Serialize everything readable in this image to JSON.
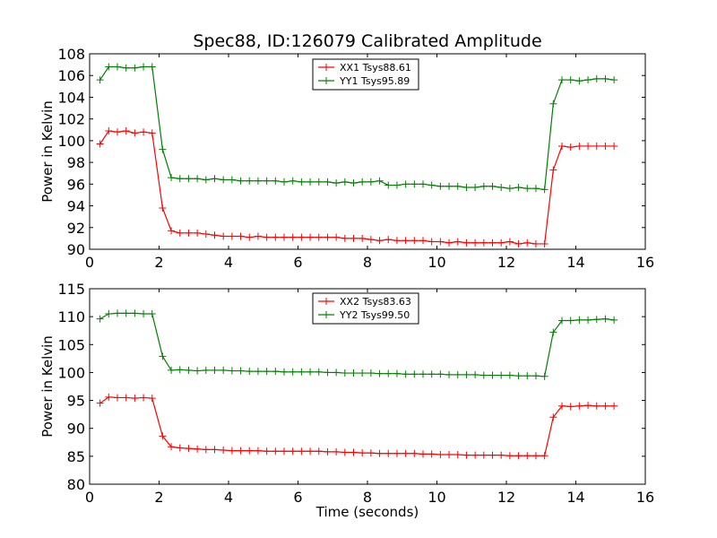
{
  "chart_data": [
    {
      "type": "line",
      "title": "Spec88, ID:126079 Calibrated Amplitude",
      "xlabel": "",
      "ylabel": "Power in Kelvin",
      "xlim": [
        0,
        16
      ],
      "ylim": [
        90,
        108
      ],
      "x_ticks": [
        "0",
        "2",
        "4",
        "6",
        "8",
        "10",
        "12",
        "14",
        "16"
      ],
      "y_ticks": [
        "90",
        "92",
        "94",
        "96",
        "98",
        "100",
        "102",
        "104",
        "106",
        "108"
      ],
      "grid": false,
      "legend_position": "top-center",
      "x": [
        0.3,
        0.55,
        0.8,
        1.05,
        1.3,
        1.55,
        1.8,
        2.1,
        2.35,
        2.6,
        2.85,
        3.1,
        3.35,
        3.6,
        3.85,
        4.1,
        4.35,
        4.6,
        4.85,
        5.1,
        5.35,
        5.6,
        5.85,
        6.1,
        6.35,
        6.6,
        6.85,
        7.1,
        7.35,
        7.6,
        7.85,
        8.1,
        8.35,
        8.6,
        8.85,
        9.1,
        9.35,
        9.6,
        9.85,
        10.1,
        10.35,
        10.6,
        10.85,
        11.1,
        11.35,
        11.6,
        11.85,
        12.1,
        12.35,
        12.6,
        12.85,
        13.1,
        13.35,
        13.6,
        13.85,
        14.1,
        14.35,
        14.6,
        14.85,
        15.1
      ],
      "series": [
        {
          "name": "XX1 Tsys88.61",
          "color": "#ff0000",
          "values": [
            99.7,
            100.9,
            100.8,
            100.9,
            100.7,
            100.8,
            100.7,
            93.8,
            91.7,
            91.5,
            91.5,
            91.5,
            91.4,
            91.3,
            91.2,
            91.2,
            91.2,
            91.1,
            91.2,
            91.1,
            91.1,
            91.1,
            91.1,
            91.1,
            91.1,
            91.1,
            91.1,
            91.1,
            91.0,
            91.0,
            91.0,
            90.9,
            90.8,
            90.9,
            90.8,
            90.8,
            90.8,
            90.8,
            90.7,
            90.7,
            90.6,
            90.7,
            90.6,
            90.6,
            90.6,
            90.6,
            90.6,
            90.7,
            90.5,
            90.6,
            90.5,
            90.5,
            97.3,
            99.5,
            99.4,
            99.5,
            99.5,
            99.5,
            99.5,
            99.5
          ]
        },
        {
          "name": "YY1 Tsys95.89",
          "color": "#008000",
          "values": [
            105.6,
            106.8,
            106.8,
            106.7,
            106.7,
            106.8,
            106.8,
            99.2,
            96.6,
            96.5,
            96.5,
            96.5,
            96.4,
            96.5,
            96.4,
            96.4,
            96.3,
            96.3,
            96.3,
            96.3,
            96.3,
            96.2,
            96.3,
            96.2,
            96.2,
            96.2,
            96.2,
            96.1,
            96.2,
            96.1,
            96.2,
            96.2,
            96.3,
            95.9,
            95.9,
            96.0,
            96.0,
            96.0,
            95.9,
            95.8,
            95.8,
            95.8,
            95.7,
            95.7,
            95.8,
            95.8,
            95.7,
            95.6,
            95.7,
            95.6,
            95.6,
            95.5,
            103.4,
            105.6,
            105.6,
            105.5,
            105.6,
            105.7,
            105.7,
            105.6
          ]
        }
      ]
    },
    {
      "type": "line",
      "title": "",
      "xlabel": "Time (seconds)",
      "ylabel": "Power in Kelvin",
      "xlim": [
        0,
        16
      ],
      "ylim": [
        80,
        115
      ],
      "x_ticks": [
        "0",
        "2",
        "4",
        "6",
        "8",
        "10",
        "12",
        "14",
        "16"
      ],
      "y_ticks": [
        "80",
        "85",
        "90",
        "95",
        "100",
        "105",
        "110",
        "115"
      ],
      "grid": false,
      "legend_position": "top-center",
      "x": [
        0.3,
        0.55,
        0.8,
        1.05,
        1.3,
        1.55,
        1.8,
        2.1,
        2.35,
        2.6,
        2.85,
        3.1,
        3.35,
        3.6,
        3.85,
        4.1,
        4.35,
        4.6,
        4.85,
        5.1,
        5.35,
        5.6,
        5.85,
        6.1,
        6.35,
        6.6,
        6.85,
        7.1,
        7.35,
        7.6,
        7.85,
        8.1,
        8.35,
        8.6,
        8.85,
        9.1,
        9.35,
        9.6,
        9.85,
        10.1,
        10.35,
        10.6,
        10.85,
        11.1,
        11.35,
        11.6,
        11.85,
        12.1,
        12.35,
        12.6,
        12.85,
        13.1,
        13.35,
        13.6,
        13.85,
        14.1,
        14.35,
        14.6,
        14.85,
        15.1
      ],
      "series": [
        {
          "name": "XX2 Tsys83.63",
          "color": "#ff0000",
          "values": [
            94.5,
            95.6,
            95.5,
            95.5,
            95.4,
            95.5,
            95.4,
            88.6,
            86.7,
            86.5,
            86.4,
            86.3,
            86.2,
            86.2,
            86.1,
            86.0,
            86.0,
            86.0,
            86.0,
            85.9,
            85.9,
            85.9,
            85.9,
            85.9,
            85.9,
            85.9,
            85.8,
            85.8,
            85.7,
            85.7,
            85.6,
            85.6,
            85.5,
            85.5,
            85.5,
            85.5,
            85.5,
            85.4,
            85.4,
            85.3,
            85.3,
            85.3,
            85.2,
            85.2,
            85.2,
            85.2,
            85.2,
            85.1,
            85.1,
            85.1,
            85.1,
            85.1,
            92.0,
            94.0,
            93.9,
            94.0,
            94.1,
            94.0,
            94.0,
            94.0
          ]
        },
        {
          "name": "YY2 Tsys99.50",
          "color": "#008000",
          "values": [
            109.6,
            110.5,
            110.6,
            110.6,
            110.6,
            110.5,
            110.5,
            102.9,
            100.4,
            100.5,
            100.4,
            100.3,
            100.4,
            100.4,
            100.4,
            100.3,
            100.3,
            100.2,
            100.2,
            100.2,
            100.2,
            100.1,
            100.1,
            100.1,
            100.1,
            100.1,
            100.0,
            100.0,
            99.9,
            99.9,
            99.9,
            99.9,
            99.8,
            99.8,
            99.8,
            99.7,
            99.7,
            99.7,
            99.7,
            99.7,
            99.6,
            99.6,
            99.6,
            99.6,
            99.5,
            99.5,
            99.5,
            99.5,
            99.4,
            99.4,
            99.4,
            99.3,
            107.2,
            109.3,
            109.3,
            109.4,
            109.4,
            109.5,
            109.6,
            109.4
          ]
        }
      ]
    }
  ]
}
